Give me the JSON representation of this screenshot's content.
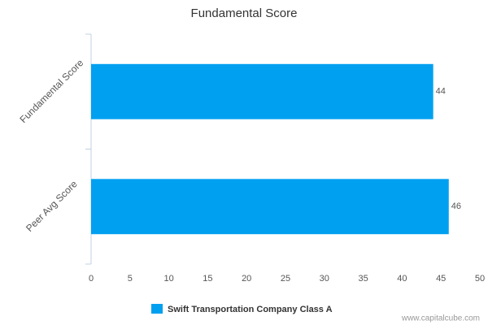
{
  "chart_data": {
    "type": "hbar",
    "title": "Fundamental Score",
    "categories": [
      "Fundamental Score",
      "Peer Avg Score"
    ],
    "series": [
      {
        "name": "Swift Transportation Company Class A",
        "color": "#00a0f0",
        "values": [
          44,
          46
        ]
      }
    ],
    "xlim": [
      0,
      50
    ],
    "xticks": [
      0,
      5,
      10,
      15,
      20,
      25,
      30,
      35,
      40,
      45,
      50
    ],
    "grid": false,
    "legend": "bottom",
    "watermark": "www.capitalcube.com"
  }
}
